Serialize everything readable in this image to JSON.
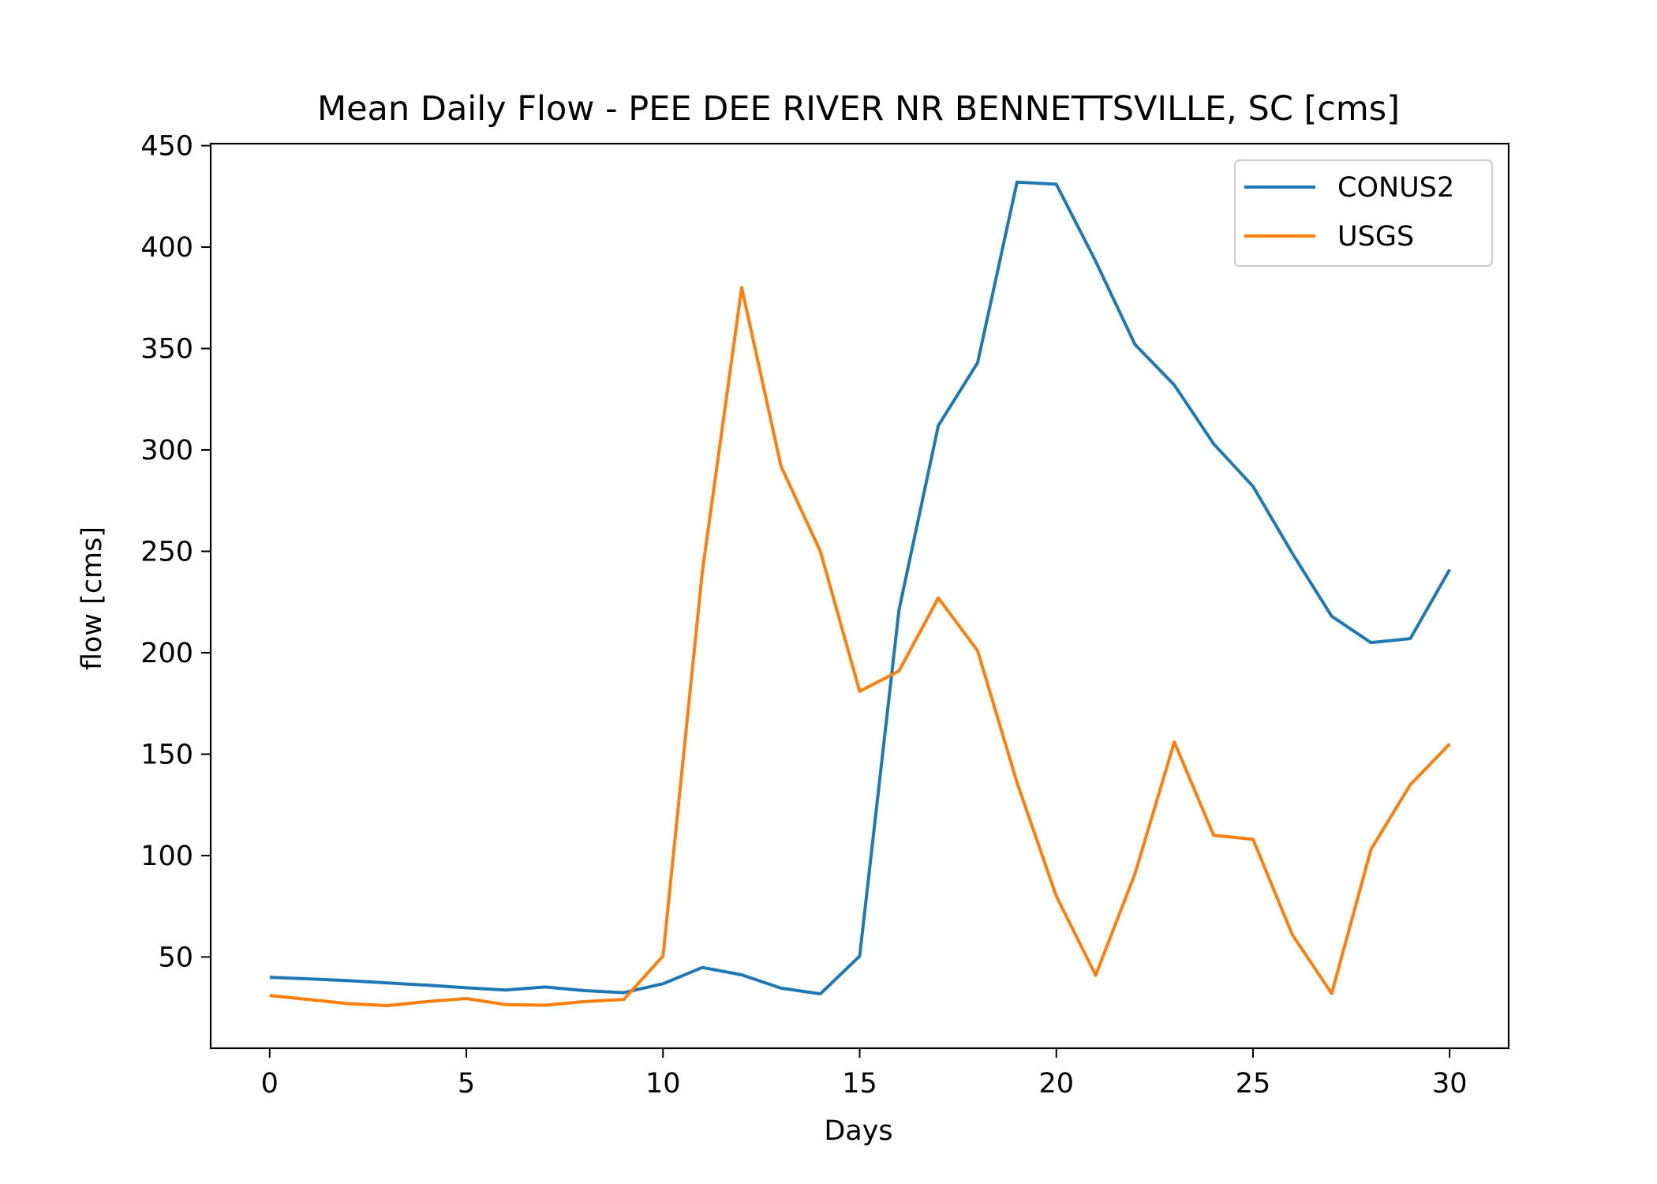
{
  "chart_data": {
    "type": "line",
    "title": "Mean Daily Flow - PEE DEE RIVER NR BENNETTSVILLE, SC [cms]",
    "xlabel": "Days",
    "ylabel": "flow [cms]",
    "xlim": [
      -1.5,
      31.5
    ],
    "ylim": [
      5,
      451
    ],
    "xticks": [
      0,
      5,
      10,
      15,
      20,
      25,
      30
    ],
    "yticks": [
      50,
      100,
      150,
      200,
      250,
      300,
      350,
      400,
      450
    ],
    "grid": false,
    "legend_position": "top-right",
    "x": [
      0,
      1,
      2,
      3,
      4,
      5,
      6,
      7,
      8,
      9,
      10,
      11,
      12,
      13,
      14,
      15,
      16,
      17,
      18,
      19,
      20,
      21,
      22,
      23,
      24,
      25,
      26,
      27,
      28,
      29,
      30
    ],
    "series": [
      {
        "name": "CONUS2",
        "color": "#1f77b4",
        "values": [
          40,
          39.2,
          38.3,
          37.2,
          36.1,
          34.8,
          33.7,
          35.2,
          33.4,
          32.4,
          36.8,
          44.8,
          41.2,
          34.6,
          31.8,
          50.4,
          221,
          312,
          343,
          432,
          431,
          393,
          352,
          332,
          303,
          282,
          249,
          218,
          205,
          207,
          241
        ]
      },
      {
        "name": "USGS",
        "color": "#ff7f0e",
        "values": [
          31,
          29,
          27,
          26,
          28,
          29.5,
          26.5,
          26.2,
          28,
          29,
          50.5,
          240,
          380,
          292,
          250,
          181,
          191,
          227,
          201,
          136,
          80,
          41,
          91,
          156,
          110,
          108,
          61,
          32,
          103,
          135,
          155
        ]
      }
    ]
  }
}
